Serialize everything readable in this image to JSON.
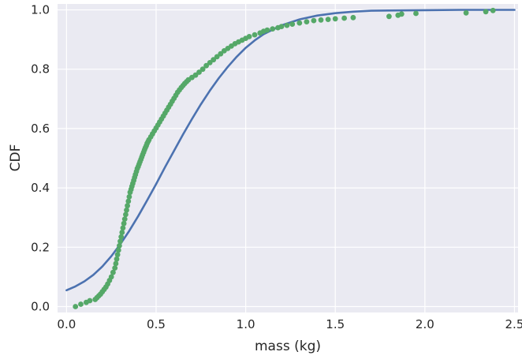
{
  "chart_data": {
    "type": "line",
    "xlabel": "mass (kg)",
    "ylabel": "CDF",
    "xlim": [
      -0.05,
      2.52
    ],
    "ylim": [
      -0.02,
      1.02
    ],
    "x_ticks": [
      "0.0",
      "0.5",
      "1.0",
      "1.5",
      "2.0",
      "2.5"
    ],
    "y_ticks": [
      "0.0",
      "0.2",
      "0.4",
      "0.6",
      "0.8",
      "1.0"
    ],
    "grid": true,
    "legend": "none",
    "colors": {
      "background": "#eaeaf2",
      "grid": "#ffffff",
      "model": "#4c72b0",
      "empirical": "#55a868",
      "text": "#262626"
    },
    "series": [
      {
        "kind": "line",
        "x": [
          0.0,
          0.05,
          0.1,
          0.15,
          0.2,
          0.25,
          0.3,
          0.35,
          0.4,
          0.45,
          0.5,
          0.55,
          0.6,
          0.65,
          0.7,
          0.75,
          0.8,
          0.85,
          0.9,
          0.95,
          1.0,
          1.05,
          1.1,
          1.2,
          1.3,
          1.4,
          1.5,
          1.6,
          1.7,
          1.8,
          2.0,
          2.2,
          2.5
        ],
        "y": [
          0.055,
          0.068,
          0.085,
          0.107,
          0.135,
          0.17,
          0.21,
          0.255,
          0.305,
          0.358,
          0.413,
          0.47,
          0.525,
          0.58,
          0.632,
          0.682,
          0.728,
          0.77,
          0.808,
          0.842,
          0.872,
          0.897,
          0.918,
          0.948,
          0.968,
          0.981,
          0.989,
          0.994,
          0.997,
          0.998,
          0.999,
          1.0,
          1.0
        ]
      },
      {
        "kind": "scatter",
        "x": [
          0.05,
          0.08,
          0.11,
          0.13,
          0.16,
          0.17,
          0.18,
          0.19,
          0.2,
          0.21,
          0.22,
          0.23,
          0.24,
          0.25,
          0.26,
          0.27,
          0.275,
          0.28,
          0.285,
          0.29,
          0.295,
          0.3,
          0.305,
          0.31,
          0.315,
          0.32,
          0.325,
          0.33,
          0.335,
          0.34,
          0.345,
          0.35,
          0.355,
          0.36,
          0.365,
          0.37,
          0.375,
          0.38,
          0.385,
          0.39,
          0.395,
          0.4,
          0.405,
          0.41,
          0.415,
          0.42,
          0.425,
          0.43,
          0.435,
          0.44,
          0.445,
          0.45,
          0.455,
          0.46,
          0.47,
          0.48,
          0.49,
          0.5,
          0.51,
          0.52,
          0.53,
          0.54,
          0.55,
          0.56,
          0.57,
          0.58,
          0.59,
          0.6,
          0.61,
          0.62,
          0.63,
          0.64,
          0.65,
          0.66,
          0.67,
          0.68,
          0.7,
          0.72,
          0.74,
          0.76,
          0.78,
          0.8,
          0.82,
          0.84,
          0.86,
          0.88,
          0.9,
          0.92,
          0.94,
          0.96,
          0.98,
          1.0,
          1.02,
          1.05,
          1.08,
          1.1,
          1.12,
          1.15,
          1.18,
          1.2,
          1.23,
          1.26,
          1.3,
          1.34,
          1.38,
          1.42,
          1.46,
          1.5,
          1.55,
          1.6,
          1.8,
          1.85,
          1.87,
          1.95,
          2.23,
          2.34,
          2.38
        ],
        "y": [
          0.0,
          0.008,
          0.014,
          0.02,
          0.024,
          0.03,
          0.036,
          0.042,
          0.05,
          0.058,
          0.066,
          0.076,
          0.088,
          0.1,
          0.115,
          0.13,
          0.145,
          0.16,
          0.175,
          0.19,
          0.205,
          0.22,
          0.235,
          0.25,
          0.265,
          0.28,
          0.295,
          0.31,
          0.325,
          0.34,
          0.355,
          0.37,
          0.385,
          0.395,
          0.405,
          0.415,
          0.425,
          0.435,
          0.445,
          0.455,
          0.465,
          0.472,
          0.48,
          0.488,
          0.496,
          0.504,
          0.512,
          0.52,
          0.528,
          0.535,
          0.542,
          0.55,
          0.556,
          0.562,
          0.572,
          0.582,
          0.592,
          0.602,
          0.612,
          0.622,
          0.632,
          0.642,
          0.652,
          0.662,
          0.672,
          0.682,
          0.692,
          0.702,
          0.712,
          0.722,
          0.73,
          0.738,
          0.745,
          0.752,
          0.758,
          0.764,
          0.772,
          0.78,
          0.79,
          0.8,
          0.812,
          0.822,
          0.832,
          0.842,
          0.852,
          0.862,
          0.87,
          0.878,
          0.886,
          0.892,
          0.898,
          0.904,
          0.91,
          0.916,
          0.922,
          0.928,
          0.932,
          0.936,
          0.94,
          0.944,
          0.948,
          0.952,
          0.956,
          0.96,
          0.964,
          0.966,
          0.968,
          0.97,
          0.972,
          0.974,
          0.978,
          0.982,
          0.986,
          0.988,
          0.99,
          0.994,
          0.998
        ]
      }
    ]
  }
}
